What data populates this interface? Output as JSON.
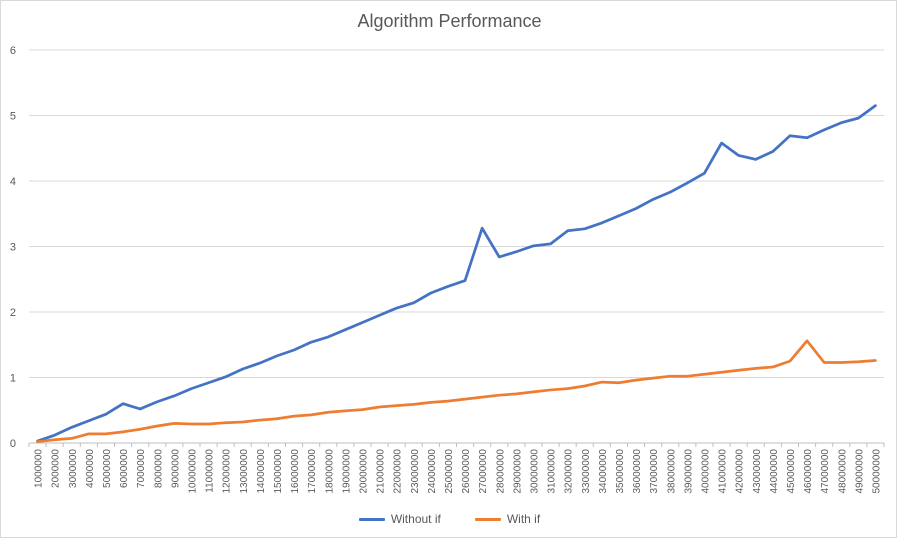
{
  "chart_data": {
    "type": "line",
    "title": "Algorithm Performance",
    "xlabel": "",
    "ylabel": "",
    "ylim": [
      0,
      6
    ],
    "y_ticks": [
      "0",
      "1",
      "2",
      "3",
      "4",
      "5",
      "6"
    ],
    "grid": true,
    "legend_position": "bottom",
    "categories": [
      "1000000",
      "2000000",
      "3000000",
      "4000000",
      "5000000",
      "6000000",
      "7000000",
      "8000000",
      "9000000",
      "10000000",
      "11000000",
      "12000000",
      "13000000",
      "14000000",
      "15000000",
      "16000000",
      "17000000",
      "18000000",
      "19000000",
      "20000000",
      "21000000",
      "22000000",
      "23000000",
      "24000000",
      "25000000",
      "26000000",
      "27000000",
      "28000000",
      "29000000",
      "30000000",
      "31000000",
      "32000000",
      "33000000",
      "34000000",
      "35000000",
      "36000000",
      "37000000",
      "38000000",
      "39000000",
      "40000000",
      "41000000",
      "42000000",
      "43000000",
      "44000000",
      "45000000",
      "46000000",
      "47000000",
      "48000000",
      "49000000",
      "50000000"
    ],
    "series": [
      {
        "name": "Without if",
        "color": "#4472c4",
        "values": [
          0.03,
          0.12,
          0.24,
          0.34,
          0.44,
          0.6,
          0.52,
          0.63,
          0.72,
          0.83,
          0.92,
          1.01,
          1.13,
          1.22,
          1.33,
          1.42,
          1.54,
          1.62,
          1.73,
          1.84,
          1.95,
          2.06,
          2.14,
          2.29,
          2.39,
          2.48,
          3.28,
          2.84,
          2.92,
          3.01,
          3.04,
          3.24,
          3.27,
          3.36,
          3.47,
          3.58,
          3.72,
          3.83,
          3.97,
          4.12,
          4.58,
          4.39,
          4.33,
          4.45,
          4.69,
          4.66,
          4.78,
          4.89,
          4.96,
          5.15
        ]
      },
      {
        "name": "With if",
        "color": "#ed7d31",
        "values": [
          0.02,
          0.05,
          0.07,
          0.14,
          0.14,
          0.17,
          0.21,
          0.26,
          0.3,
          0.29,
          0.29,
          0.31,
          0.32,
          0.35,
          0.37,
          0.41,
          0.43,
          0.47,
          0.49,
          0.51,
          0.55,
          0.57,
          0.59,
          0.62,
          0.64,
          0.67,
          0.7,
          0.73,
          0.75,
          0.78,
          0.81,
          0.83,
          0.87,
          0.93,
          0.92,
          0.96,
          0.99,
          1.02,
          1.02,
          1.05,
          1.08,
          1.11,
          1.14,
          1.16,
          1.25,
          1.56,
          1.23,
          1.23,
          1.24,
          1.26
        ]
      }
    ]
  }
}
